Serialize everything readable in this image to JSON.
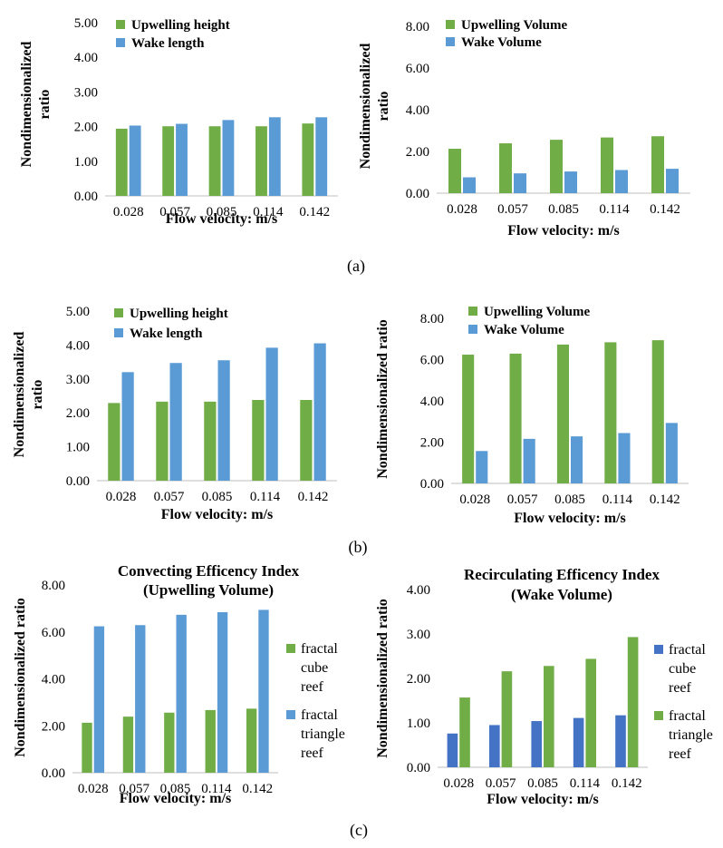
{
  "colors": {
    "green": "#70ad47",
    "blue": "#5b9bd5",
    "dark_blue": "#4472c4"
  },
  "subfigure_labels": [
    "(a)",
    "(b)",
    "(c)"
  ],
  "chart_data": [
    {
      "type": "bar",
      "panel": "a-left",
      "title": "",
      "xlabel": "Flow velocity: m/s",
      "ylabel": "Nondimensionalized ratio",
      "ylabel_lines": [
        "Nondimensionalized",
        "ratio"
      ],
      "ylim": [
        0,
        5
      ],
      "yticks": [
        "0.00",
        "1.00",
        "2.00",
        "3.00",
        "4.00",
        "5.00"
      ],
      "categories": [
        "0.028",
        "0.057",
        "0.085",
        "0.114",
        "0.142"
      ],
      "legend": "top-left",
      "series": [
        {
          "name": "Upwelling height",
          "color": "#70ad47",
          "values": [
            1.94,
            2.01,
            2.01,
            2.01,
            2.09
          ]
        },
        {
          "name": "Wake length",
          "color": "#5b9bd5",
          "values": [
            2.03,
            2.08,
            2.19,
            2.27,
            2.27
          ]
        }
      ]
    },
    {
      "type": "bar",
      "panel": "a-right",
      "title": "",
      "xlabel": "Flow velocity: m/s",
      "ylabel": "Nondimensionalized ratio",
      "ylabel_lines": [
        "Nondimensionalized",
        "ratio"
      ],
      "ylim": [
        0,
        8
      ],
      "yticks": [
        "0.00",
        "2.00",
        "4.00",
        "6.00",
        "8.00"
      ],
      "categories": [
        "0.028",
        "0.057",
        "0.085",
        "0.114",
        "0.142"
      ],
      "legend": "top-left",
      "series": [
        {
          "name": "Upwelling Volume",
          "color": "#70ad47",
          "values": [
            2.13,
            2.39,
            2.56,
            2.67,
            2.73
          ]
        },
        {
          "name": "Wake Volume",
          "color": "#5b9bd5",
          "values": [
            0.76,
            0.95,
            1.04,
            1.11,
            1.17
          ]
        }
      ]
    },
    {
      "type": "bar",
      "panel": "b-left",
      "title": "",
      "xlabel": "Flow velocity: m/s",
      "ylabel": "Nondimensionalized ratio",
      "ylabel_lines": [
        "Nondimensionalized",
        "ratio"
      ],
      "ylim": [
        0,
        5
      ],
      "yticks": [
        "0.00",
        "1.00",
        "2.00",
        "3.00",
        "4.00",
        "5.00"
      ],
      "categories": [
        "0.028",
        "0.057",
        "0.085",
        "0.114",
        "0.142"
      ],
      "legend": "top-left",
      "series": [
        {
          "name": "Upwelling height",
          "color": "#70ad47",
          "values": [
            2.29,
            2.33,
            2.33,
            2.38,
            2.38
          ]
        },
        {
          "name": "Wake length",
          "color": "#5b9bd5",
          "values": [
            3.2,
            3.47,
            3.55,
            3.92,
            4.05
          ]
        }
      ]
    },
    {
      "type": "bar",
      "panel": "b-right",
      "title": "",
      "xlabel": "Flow velocity: m/s",
      "ylabel": "Nondimensionalized ratio",
      "ylabel_lines": [
        "Nondimensionalized ratio"
      ],
      "ylim": [
        0,
        8
      ],
      "yticks": [
        "0.00",
        "2.00",
        "4.00",
        "6.00",
        "8.00"
      ],
      "categories": [
        "0.028",
        "0.057",
        "0.085",
        "0.114",
        "0.142"
      ],
      "legend": "top-left",
      "series": [
        {
          "name": "Upwelling Volume",
          "color": "#70ad47",
          "values": [
            6.24,
            6.29,
            6.73,
            6.84,
            6.94
          ]
        },
        {
          "name": "Wake Volume",
          "color": "#5b9bd5",
          "values": [
            1.57,
            2.16,
            2.28,
            2.44,
            2.93
          ]
        }
      ]
    },
    {
      "type": "bar",
      "panel": "c-left",
      "title": "Convecting Efficency Index",
      "subtitle": "(Upwelling Volume)",
      "xlabel": "Flow velocity: m/s",
      "ylabel": "Nondimensionalized ratio",
      "ylabel_lines": [
        "Nondimensionalized ratio"
      ],
      "ylim": [
        0,
        8
      ],
      "yticks": [
        "0.00",
        "2.00",
        "4.00",
        "6.00",
        "8.00"
      ],
      "categories": [
        "0.028",
        "0.057",
        "0.085",
        "0.114",
        "0.142"
      ],
      "legend": "right",
      "series": [
        {
          "name": "fractal cube reef",
          "name_lines": [
            "fractal",
            "cube",
            "reef"
          ],
          "color": "#70ad47",
          "values": [
            2.13,
            2.39,
            2.56,
            2.67,
            2.73
          ]
        },
        {
          "name": "fractal triangle reef",
          "name_lines": [
            "fractal",
            "triangle",
            "reef"
          ],
          "color": "#5b9bd5",
          "values": [
            6.24,
            6.29,
            6.73,
            6.84,
            6.94
          ]
        }
      ]
    },
    {
      "type": "bar",
      "panel": "c-right",
      "title": "Recirculating Efficency Index",
      "subtitle": "(Wake Volume)",
      "xlabel": "Flow velocity: m/s",
      "ylabel": "Nondimensionalized ratio",
      "ylabel_lines": [
        "Nondimensionalized ratio"
      ],
      "ylim": [
        0,
        4
      ],
      "yticks": [
        "0.00",
        "1.00",
        "2.00",
        "3.00",
        "4.00"
      ],
      "categories": [
        "0.028",
        "0.057",
        "0.085",
        "0.114",
        "0.142"
      ],
      "legend": "right",
      "series": [
        {
          "name": "fractal cube reef",
          "name_lines": [
            "fractal",
            "cube",
            "reef"
          ],
          "color": "#4472c4",
          "values": [
            0.76,
            0.95,
            1.04,
            1.11,
            1.17
          ]
        },
        {
          "name": "fractal triangle reef",
          "name_lines": [
            "fractal",
            "triangle",
            "reef"
          ],
          "color": "#70ad47",
          "values": [
            1.57,
            2.16,
            2.28,
            2.44,
            2.93
          ]
        }
      ]
    }
  ]
}
